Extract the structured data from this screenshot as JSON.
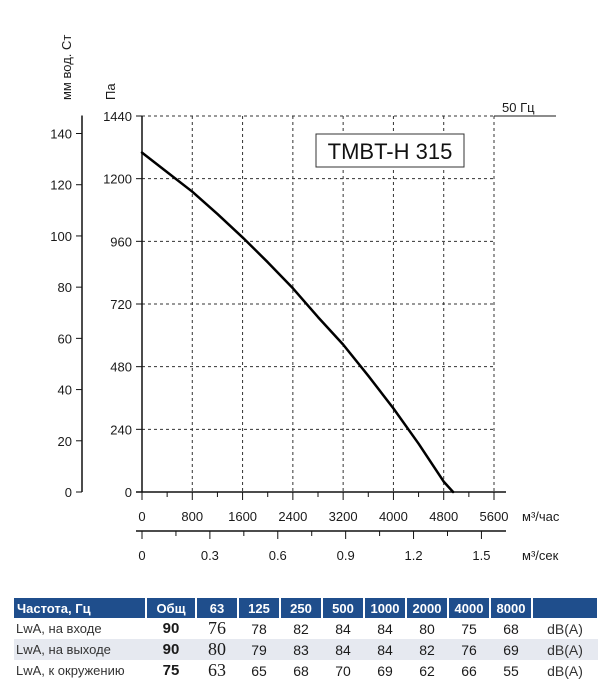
{
  "chart_data": {
    "type": "line",
    "title": "TMBT-H 315",
    "frequency_label": "50 Гц",
    "left_axis_label": "мм вод. Ст",
    "ylabel": "Па",
    "xlabel": "м³/час",
    "x2label": "м³/сек",
    "ylim": [
      0,
      1440
    ],
    "xlim": [
      0,
      5600
    ],
    "y_ticks": [
      0,
      240,
      480,
      720,
      960,
      1200,
      1440
    ],
    "y2_ticks": [
      0,
      20,
      40,
      60,
      80,
      100,
      120,
      140
    ],
    "x_ticks": [
      0,
      800,
      1600,
      2400,
      3200,
      4000,
      4800,
      5600
    ],
    "x2_ticks": [
      "0",
      "0.3",
      "0.6",
      "0.9",
      "1.2",
      "1.5"
    ],
    "grid": true,
    "series": [
      {
        "x": [
          0,
          400,
          800,
          1200,
          1600,
          2000,
          2400,
          2800,
          3200,
          3600,
          4000,
          4400,
          4800,
          4950
        ],
        "y": [
          1300,
          1225,
          1150,
          1065,
          975,
          880,
          780,
          670,
          565,
          445,
          320,
          185,
          40,
          0
        ]
      }
    ]
  },
  "table": {
    "headers": [
      "Частота, Гц",
      "Общ",
      "63",
      "125",
      "250",
      "500",
      "1000",
      "2000",
      "4000",
      "8000"
    ],
    "rows": [
      {
        "label": "LwA, на входе",
        "values": [
          "90",
          "76",
          "78",
          "82",
          "84",
          "84",
          "80",
          "75",
          "68"
        ],
        "unit": "dB(A)"
      },
      {
        "label": "LwA, на выходе",
        "values": [
          "90",
          "80",
          "79",
          "83",
          "84",
          "84",
          "82",
          "76",
          "69"
        ],
        "unit": "dB(A)"
      },
      {
        "label": "LwA, к окружению",
        "values": [
          "75",
          "63",
          "65",
          "68",
          "70",
          "69",
          "62",
          "66",
          "55"
        ],
        "unit": "dB(A)"
      }
    ]
  }
}
